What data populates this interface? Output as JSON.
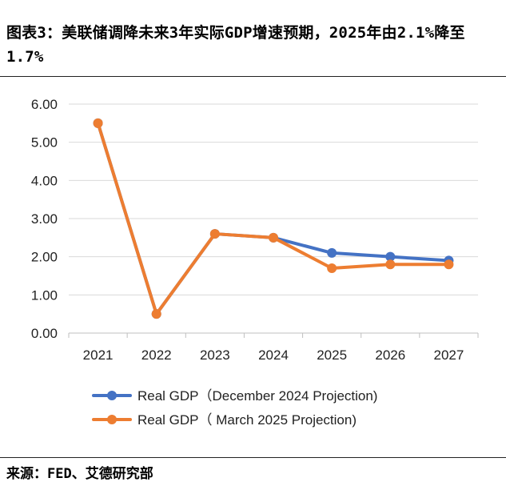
{
  "header": {
    "title": "图表3：美联储调降未来3年实际GDP增速预期，2025年由2.1%降至1.7%"
  },
  "source": "来源：FED、艾德研究部",
  "colors": {
    "series1": "#4472C4",
    "series2": "#ED7D31",
    "grid": "#d9d9d9",
    "axis": "#bfbfbf"
  },
  "chart_data": {
    "type": "line",
    "title": "",
    "xlabel": "",
    "ylabel": "",
    "categories": [
      "2021",
      "2022",
      "2023",
      "2024",
      "2025",
      "2026",
      "2027"
    ],
    "y_ticks": [
      "0.00",
      "1.00",
      "2.00",
      "3.00",
      "4.00",
      "5.00",
      "6.00"
    ],
    "ylim": [
      0,
      6
    ],
    "grid": true,
    "legend_position": "bottom",
    "series": [
      {
        "name": "Real GDP（December 2024 Projection)",
        "color": "#4472C4",
        "values": [
          5.5,
          0.5,
          2.6,
          2.5,
          2.1,
          2.0,
          1.9
        ]
      },
      {
        "name": "Real GDP（ March 2025 Projection)",
        "color": "#ED7D31",
        "values": [
          5.5,
          0.5,
          2.6,
          2.5,
          1.7,
          1.8,
          1.8
        ]
      }
    ]
  }
}
